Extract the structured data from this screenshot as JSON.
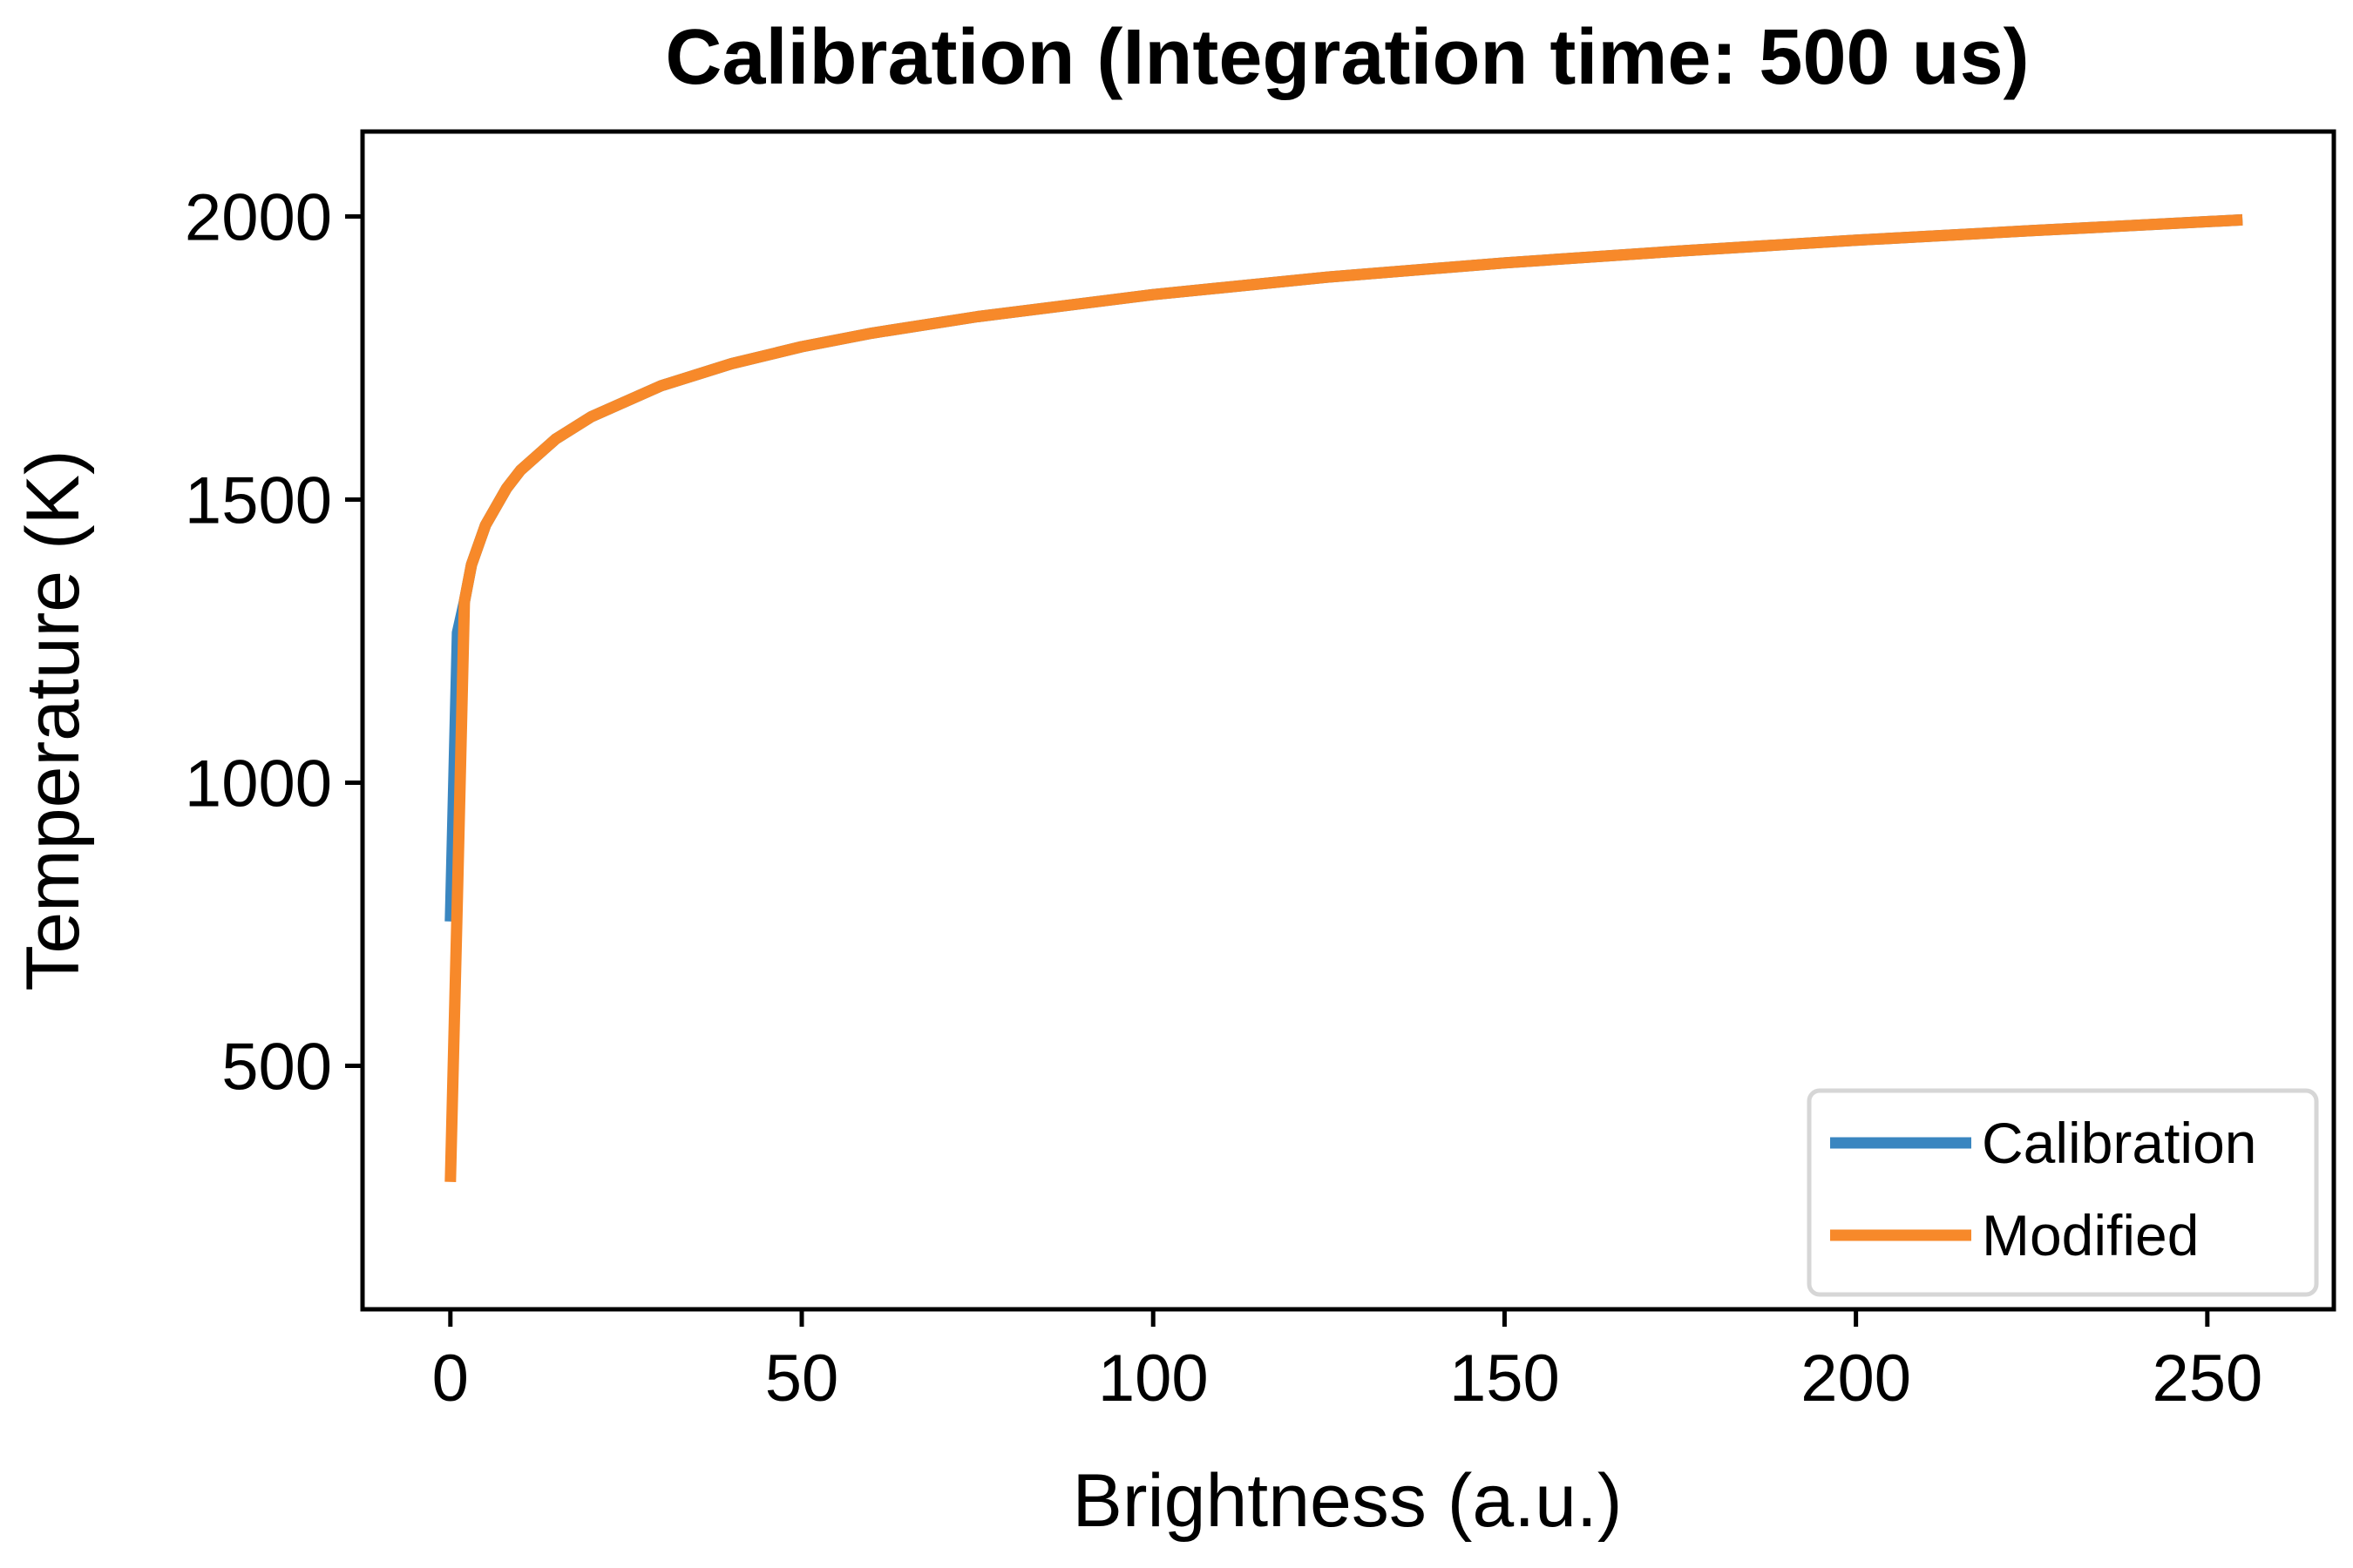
{
  "chart_data": {
    "type": "line",
    "title": "Calibration (Integration time: 500 us)",
    "xlabel": "Brightness (a.u.)",
    "ylabel": "Temperature (K)",
    "xlim": [
      -12.5,
      268
    ],
    "ylim": [
      70,
      2150
    ],
    "xticks": [
      0,
      50,
      100,
      150,
      200,
      250
    ],
    "yticks": [
      500,
      1000,
      1500,
      2000
    ],
    "grid": false,
    "legend_position": "lower right",
    "series": [
      {
        "name": "Calibration",
        "color": "#3a86c0",
        "x": [
          0,
          1,
          2,
          3,
          5,
          8,
          10,
          15,
          20,
          30,
          40,
          50,
          60,
          75,
          100,
          125,
          150,
          175,
          200,
          225,
          255
        ],
        "y": [
          755,
          1265,
          1320,
          1385,
          1455,
          1520,
          1552,
          1607,
          1646,
          1701,
          1740,
          1770,
          1794,
          1823,
          1862,
          1893,
          1918,
          1939,
          1958,
          1975,
          1994
        ]
      },
      {
        "name": "Modified",
        "color": "#f7892a",
        "x": [
          0,
          1,
          2,
          3,
          5,
          8,
          10,
          15,
          20,
          30,
          40,
          50,
          60,
          75,
          100,
          125,
          150,
          175,
          200,
          225,
          255
        ],
        "y": [
          295,
          800,
          1320,
          1385,
          1455,
          1520,
          1552,
          1607,
          1646,
          1701,
          1740,
          1770,
          1794,
          1823,
          1862,
          1893,
          1918,
          1939,
          1958,
          1975,
          1994
        ]
      }
    ]
  }
}
